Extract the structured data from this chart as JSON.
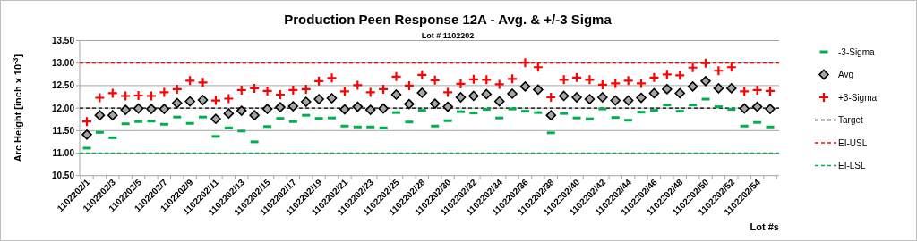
{
  "chart_data": {
    "type": "scatter",
    "title": "Production Peen Response 12A  -  Avg.  &  +/-3 Sigma",
    "subtitle": "Lot # 1102202",
    "xlabel": "Lot #s",
    "ylabel": "Arc Height  [inch x 10$^{-3}$]",
    "categories": [
      "1102202/1",
      null,
      "1102202/3",
      null,
      "1102202/5",
      null,
      "1102202/7",
      null,
      "1102202/9",
      null,
      "1102202/11",
      null,
      "1102202/13",
      null,
      "1102202/15",
      null,
      "1102202/17",
      null,
      "1102202/19",
      null,
      "1102202/21",
      null,
      "1102202/23",
      null,
      "1102202/25",
      null,
      "1102202/28",
      null,
      "1102202/30",
      null,
      "1102202/32",
      null,
      "1102202/34",
      null,
      "1102202/36",
      null,
      "1102202/38",
      null,
      "1102202/40",
      null,
      "1102202/42",
      null,
      "1102202/44",
      null,
      "1102202/46",
      null,
      "1102202/48",
      null,
      "1102202/50",
      null,
      "1102202/52",
      null,
      "1102202/54",
      null
    ],
    "series": [
      {
        "name": "-3-Sigma",
        "color": "#00b050",
        "marker": "square",
        "values": [
          11.11,
          11.46,
          11.34,
          11.65,
          11.7,
          11.71,
          11.64,
          11.8,
          11.66,
          11.8,
          11.37,
          11.56,
          11.49,
          11.25,
          11.59,
          11.77,
          11.7,
          11.84,
          11.77,
          11.78,
          11.6,
          11.58,
          11.58,
          11.56,
          11.9,
          11.69,
          11.95,
          11.6,
          11.72,
          11.92,
          11.89,
          11.97,
          11.78,
          11.98,
          11.93,
          11.9,
          11.45,
          11.88,
          11.78,
          11.76,
          11.98,
          11.79,
          11.73,
          11.91,
          11.95,
          12.07,
          11.93,
          12.07,
          12.2,
          12.03,
          11.97,
          11.6,
          11.68,
          11.58
        ]
      },
      {
        "name": "Avg",
        "color": "#a6a6a6",
        "marker": "diamond",
        "values": [
          11.41,
          11.84,
          11.84,
          11.96,
          11.99,
          11.98,
          11.98,
          12.11,
          12.15,
          12.18,
          11.76,
          11.88,
          11.94,
          11.84,
          11.98,
          12.02,
          12.04,
          12.14,
          12.2,
          12.22,
          11.97,
          12.03,
          11.96,
          11.99,
          12.3,
          12.09,
          12.34,
          12.1,
          12.03,
          12.24,
          12.27,
          12.31,
          12.15,
          12.32,
          12.48,
          12.41,
          11.84,
          12.27,
          12.24,
          12.2,
          12.24,
          12.17,
          12.17,
          12.23,
          12.33,
          12.42,
          12.33,
          12.48,
          12.6,
          12.44,
          12.44,
          11.99,
          12.03,
          11.98
        ]
      },
      {
        "name": "+3-Sigma",
        "color": "#ff0000",
        "marker": "cross",
        "values": [
          11.7,
          12.23,
          12.33,
          12.27,
          12.28,
          12.27,
          12.35,
          12.42,
          12.61,
          12.57,
          12.17,
          12.21,
          12.4,
          12.44,
          12.38,
          12.3,
          12.4,
          12.42,
          12.6,
          12.67,
          12.37,
          12.51,
          12.35,
          12.42,
          12.7,
          12.5,
          12.74,
          12.62,
          12.35,
          12.54,
          12.64,
          12.63,
          12.53,
          12.65,
          13.01,
          12.91,
          12.24,
          12.63,
          12.68,
          12.63,
          12.52,
          12.55,
          12.61,
          12.55,
          12.68,
          12.75,
          12.73,
          12.9,
          13.0,
          12.83,
          12.91,
          12.37,
          12.4,
          12.38
        ]
      }
    ],
    "ref_lines": [
      {
        "axis": "y",
        "value": 12.0,
        "label": "Target",
        "color": "#000000",
        "line_style": "dashed"
      },
      {
        "axis": "y",
        "value": 13.0,
        "label": "EI-USL",
        "color": "#ff0000",
        "line_style": "dashed"
      },
      {
        "axis": "y",
        "value": 11.0,
        "label": "EI-LSL",
        "color": "#00b050",
        "line_style": "dashed"
      }
    ],
    "ylim": [
      10.5,
      13.5
    ],
    "yticks": [
      {
        "value": 10.5,
        "label": "10.50"
      },
      {
        "value": 11,
        "label": "11.00"
      },
      {
        "value": 11.5,
        "label": "11.50"
      },
      {
        "value": 12,
        "label": "12.00"
      },
      {
        "value": 12.5,
        "label": "12.50"
      },
      {
        "value": 13,
        "label": "13.00"
      },
      {
        "value": 13.5,
        "label": "13.50"
      }
    ],
    "grid": "y",
    "legend": "right"
  }
}
